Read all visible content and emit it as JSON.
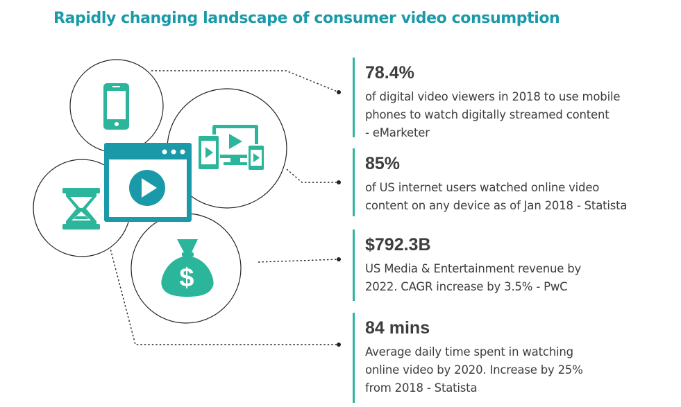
{
  "title": "Rapidly changing landscape of consumer video consumption",
  "colors": {
    "accent": "#2bb59a",
    "title": "#1a9aa8",
    "text": "#3d3d3d",
    "line": "#222222"
  },
  "icons": [
    "smartphone-icon",
    "multi-device-icon",
    "hourglass-icon",
    "video-player-icon",
    "money-bag-icon"
  ],
  "money_symbol": "$",
  "stats": [
    {
      "value": "78.4%",
      "desc": [
        "of digital video viewers in 2018 to use mobile",
        "phones to watch digitally streamed content",
        "- eMarketer"
      ]
    },
    {
      "value": "85%",
      "desc": [
        "of US internet users watched online video",
        "content on any device as of Jan 2018 - Statista"
      ]
    },
    {
      "value": "$792.3B",
      "desc": [
        "US Media & Entertainment revenue by",
        "2022. CAGR increase by 3.5% - PwC"
      ]
    },
    {
      "value": "84 mins",
      "desc": [
        "Average daily time spent in watching",
        "online video by 2020. Increase by 25%",
        "from 2018 - Statista"
      ]
    }
  ]
}
